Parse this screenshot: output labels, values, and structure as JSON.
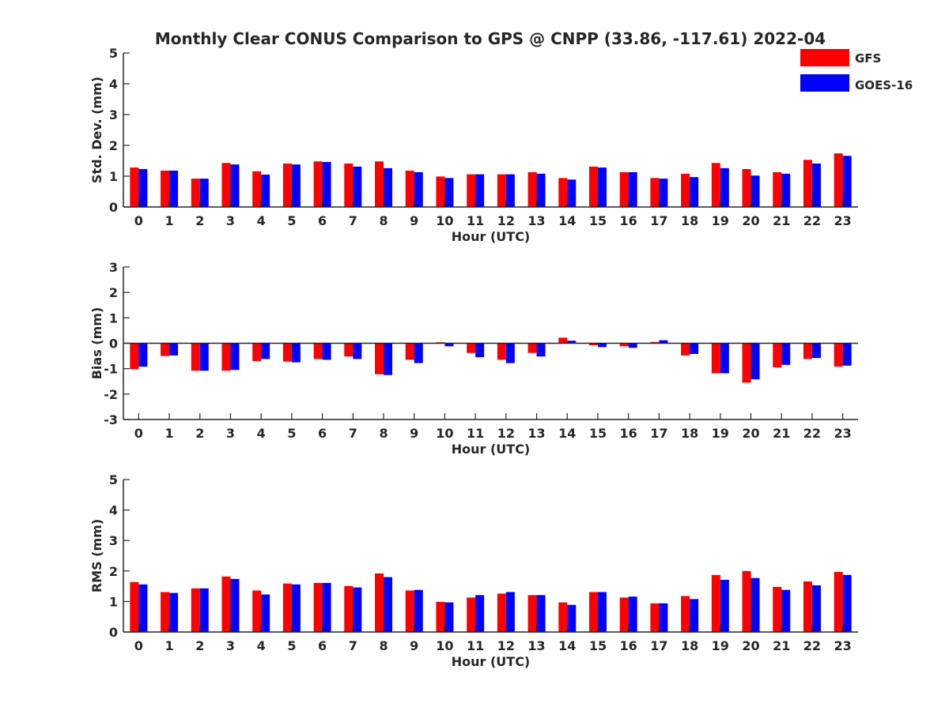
{
  "title": "Monthly Clear CONUS Comparison to GPS @ CNPP (33.86, -117.61) 2022-04",
  "legend": [
    {
      "name": "GFS",
      "color": "#ff0000"
    },
    {
      "name": "GOES-16",
      "color": "#0000ff"
    }
  ],
  "chart_data": [
    {
      "type": "bar",
      "ylabel": "Std. Dev. (mm)",
      "xlabel": "Hour (UTC)",
      "ylim": [
        0,
        5
      ],
      "yticks": [
        0,
        1,
        2,
        3,
        4,
        5
      ],
      "categories": [
        "0",
        "1",
        "2",
        "3",
        "4",
        "5",
        "6",
        "7",
        "8",
        "9",
        "10",
        "11",
        "12",
        "13",
        "14",
        "15",
        "16",
        "17",
        "18",
        "19",
        "20",
        "21",
        "22",
        "23"
      ],
      "series": [
        {
          "name": "GFS",
          "values": [
            1.28,
            1.18,
            0.92,
            1.43,
            1.16,
            1.41,
            1.48,
            1.41,
            1.48,
            1.18,
            0.99,
            1.06,
            1.06,
            1.13,
            0.94,
            1.31,
            1.13,
            0.94,
            1.08,
            1.43,
            1.23,
            1.13,
            1.53,
            1.74
          ]
        },
        {
          "name": "GOES-16",
          "values": [
            1.23,
            1.18,
            0.92,
            1.38,
            1.05,
            1.38,
            1.46,
            1.31,
            1.26,
            1.13,
            0.94,
            1.06,
            1.06,
            1.08,
            0.89,
            1.28,
            1.13,
            0.92,
            0.97,
            1.26,
            1.02,
            1.08,
            1.41,
            1.66
          ]
        }
      ]
    },
    {
      "type": "bar",
      "ylabel": "Bias (mm)",
      "xlabel": "Hour (UTC)",
      "ylim": [
        -3,
        3
      ],
      "yticks": [
        -3,
        -2,
        -1,
        0,
        1,
        2,
        3
      ],
      "categories": [
        "0",
        "1",
        "2",
        "3",
        "4",
        "5",
        "6",
        "7",
        "8",
        "9",
        "10",
        "11",
        "12",
        "13",
        "14",
        "15",
        "16",
        "17",
        "18",
        "19",
        "20",
        "21",
        "22",
        "23"
      ],
      "series": [
        {
          "name": "GFS",
          "values": [
            -1.02,
            -0.5,
            -1.08,
            -1.08,
            -0.7,
            -0.72,
            -0.62,
            -0.52,
            -1.22,
            -0.65,
            0.04,
            -0.38,
            -0.65,
            -0.38,
            0.22,
            -0.08,
            -0.12,
            0.05,
            -0.48,
            -1.18,
            -1.55,
            -0.95,
            -0.62,
            -0.92
          ]
        },
        {
          "name": "GOES-16",
          "values": [
            -0.92,
            -0.48,
            -1.08,
            -1.05,
            -0.62,
            -0.75,
            -0.65,
            -0.62,
            -1.25,
            -0.78,
            -0.12,
            -0.55,
            -0.78,
            -0.52,
            0.1,
            -0.15,
            -0.18,
            0.12,
            -0.42,
            -1.18,
            -1.42,
            -0.85,
            -0.58,
            -0.88
          ]
        }
      ]
    },
    {
      "type": "bar",
      "ylabel": "RMS (mm)",
      "xlabel": "Hour (UTC)",
      "ylim": [
        0,
        5
      ],
      "yticks": [
        0,
        1,
        2,
        3,
        4,
        5
      ],
      "categories": [
        "0",
        "1",
        "2",
        "3",
        "4",
        "5",
        "6",
        "7",
        "8",
        "9",
        "10",
        "11",
        "12",
        "13",
        "14",
        "15",
        "16",
        "17",
        "18",
        "19",
        "20",
        "21",
        "22",
        "23"
      ],
      "series": [
        {
          "name": "GFS",
          "values": [
            1.64,
            1.31,
            1.43,
            1.82,
            1.36,
            1.59,
            1.61,
            1.51,
            1.92,
            1.36,
            0.99,
            1.13,
            1.26,
            1.21,
            0.97,
            1.31,
            1.13,
            0.94,
            1.18,
            1.87,
            2.0,
            1.48,
            1.66,
            1.97
          ]
        },
        {
          "name": "GOES-16",
          "values": [
            1.56,
            1.28,
            1.43,
            1.74,
            1.23,
            1.56,
            1.61,
            1.46,
            1.8,
            1.38,
            0.97,
            1.21,
            1.31,
            1.21,
            0.89,
            1.31,
            1.16,
            0.94,
            1.08,
            1.71,
            1.77,
            1.38,
            1.53,
            1.87
          ]
        }
      ]
    }
  ]
}
